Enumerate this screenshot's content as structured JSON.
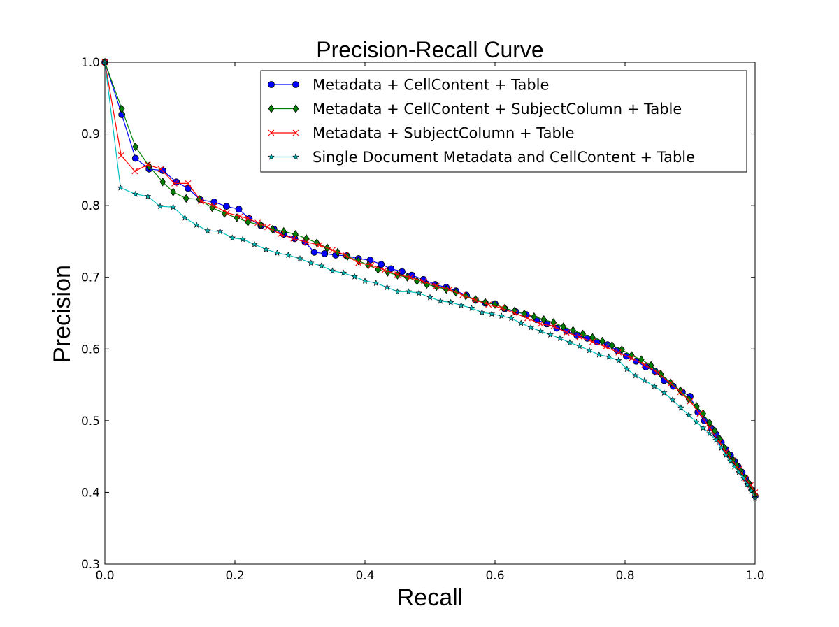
{
  "chart_data": {
    "type": "line",
    "title": "Precision-Recall Curve",
    "xlabel": "Recall",
    "ylabel": "Precision",
    "xlim": [
      0.0,
      1.0
    ],
    "ylim": [
      0.3,
      1.0
    ],
    "xticks": [
      0.0,
      0.2,
      0.4,
      0.6,
      0.8,
      1.0
    ],
    "xtick_labels": [
      "0.0",
      "0.2",
      "0.4",
      "0.6",
      "0.8",
      "1.0"
    ],
    "yticks": [
      0.3,
      0.4,
      0.5,
      0.6,
      0.7,
      0.8,
      0.9,
      1.0
    ],
    "ytick_labels": [
      "0.3",
      "0.4",
      "0.5",
      "0.6",
      "0.7",
      "0.8",
      "0.9",
      "1.0"
    ],
    "grid": false,
    "legend_position": "top-right",
    "series": [
      {
        "name": "Metadata + CellContent + Table",
        "color": "#0000ff",
        "marker": "circle",
        "x": [
          0.0,
          0.026,
          0.047,
          0.068,
          0.089,
          0.11,
          0.128,
          0.147,
          0.168,
          0.187,
          0.206,
          0.222,
          0.24,
          0.26,
          0.275,
          0.292,
          0.308,
          0.322,
          0.338,
          0.355,
          0.372,
          0.39,
          0.408,
          0.425,
          0.44,
          0.457,
          0.472,
          0.49,
          0.508,
          0.525,
          0.54,
          0.556,
          0.57,
          0.585,
          0.6,
          0.615,
          0.632,
          0.648,
          0.664,
          0.68,
          0.695,
          0.71,
          0.726,
          0.742,
          0.757,
          0.773,
          0.788,
          0.802,
          0.817,
          0.832,
          0.846,
          0.86,
          0.874,
          0.888,
          0.9,
          0.912,
          0.922,
          0.932,
          0.94,
          0.948,
          0.955,
          0.962,
          0.968,
          0.974,
          0.98,
          0.985,
          0.99,
          0.995,
          1.0
        ],
        "y": [
          1.0,
          0.927,
          0.866,
          0.851,
          0.849,
          0.833,
          0.824,
          0.808,
          0.805,
          0.799,
          0.795,
          0.782,
          0.772,
          0.767,
          0.76,
          0.754,
          0.749,
          0.735,
          0.733,
          0.731,
          0.73,
          0.726,
          0.724,
          0.718,
          0.712,
          0.708,
          0.703,
          0.697,
          0.69,
          0.686,
          0.681,
          0.675,
          0.668,
          0.664,
          0.663,
          0.656,
          0.652,
          0.648,
          0.641,
          0.635,
          0.629,
          0.625,
          0.619,
          0.615,
          0.61,
          0.606,
          0.598,
          0.59,
          0.583,
          0.575,
          0.569,
          0.556,
          0.548,
          0.54,
          0.534,
          0.512,
          0.5,
          0.49,
          0.481,
          0.47,
          0.46,
          0.452,
          0.444,
          0.436,
          0.428,
          0.42,
          0.412,
          0.404,
          0.395
        ]
      },
      {
        "name": "Metadata + CellContent + SubjectColumn + Table",
        "color": "#008000",
        "marker": "diamond",
        "x": [
          0.0,
          0.026,
          0.047,
          0.068,
          0.089,
          0.105,
          0.125,
          0.145,
          0.165,
          0.184,
          0.203,
          0.22,
          0.24,
          0.258,
          0.275,
          0.293,
          0.31,
          0.326,
          0.342,
          0.358,
          0.373,
          0.39,
          0.405,
          0.42,
          0.435,
          0.45,
          0.465,
          0.48,
          0.495,
          0.51,
          0.525,
          0.54,
          0.555,
          0.57,
          0.585,
          0.6,
          0.615,
          0.63,
          0.645,
          0.66,
          0.675,
          0.69,
          0.705,
          0.72,
          0.735,
          0.75,
          0.765,
          0.78,
          0.795,
          0.81,
          0.825,
          0.84,
          0.855,
          0.87,
          0.885,
          0.898,
          0.91,
          0.92,
          0.93,
          0.938,
          0.946,
          0.953,
          0.96,
          0.966,
          0.972,
          0.978,
          0.984,
          0.99,
          0.995,
          1.0
        ],
        "y": [
          1.0,
          0.935,
          0.882,
          0.855,
          0.833,
          0.819,
          0.81,
          0.809,
          0.797,
          0.789,
          0.783,
          0.777,
          0.773,
          0.767,
          0.764,
          0.76,
          0.754,
          0.748,
          0.741,
          0.735,
          0.729,
          0.723,
          0.717,
          0.711,
          0.707,
          0.703,
          0.7,
          0.695,
          0.69,
          0.687,
          0.683,
          0.679,
          0.674,
          0.669,
          0.665,
          0.662,
          0.657,
          0.653,
          0.649,
          0.645,
          0.641,
          0.637,
          0.631,
          0.626,
          0.621,
          0.616,
          0.611,
          0.605,
          0.599,
          0.591,
          0.585,
          0.577,
          0.565,
          0.553,
          0.542,
          0.53,
          0.52,
          0.51,
          0.497,
          0.486,
          0.474,
          0.462,
          0.453,
          0.445,
          0.437,
          0.429,
          0.421,
          0.413,
          0.404,
          0.396
        ]
      },
      {
        "name": "Metadata + SubjectColumn + Table",
        "color": "#ff0000",
        "marker": "x",
        "x": [
          0.0,
          0.025,
          0.046,
          0.066,
          0.086,
          0.107,
          0.128,
          0.148,
          0.168,
          0.188,
          0.208,
          0.22,
          0.235,
          0.25,
          0.27,
          0.29,
          0.31,
          0.33,
          0.35,
          0.37,
          0.39,
          0.41,
          0.43,
          0.45,
          0.47,
          0.49,
          0.51,
          0.53,
          0.55,
          0.57,
          0.59,
          0.61,
          0.63,
          0.65,
          0.67,
          0.69,
          0.71,
          0.73,
          0.75,
          0.77,
          0.79,
          0.81,
          0.83,
          0.85,
          0.87,
          0.885,
          0.9,
          0.915,
          0.93,
          0.945,
          0.955,
          0.965,
          0.975,
          0.985,
          0.993,
          1.0
        ],
        "y": [
          1.0,
          0.87,
          0.848,
          0.857,
          0.851,
          0.831,
          0.831,
          0.806,
          0.8,
          0.79,
          0.785,
          0.782,
          0.776,
          0.77,
          0.76,
          0.754,
          0.749,
          0.745,
          0.738,
          0.731,
          0.72,
          0.717,
          0.71,
          0.704,
          0.7,
          0.694,
          0.688,
          0.683,
          0.675,
          0.668,
          0.662,
          0.657,
          0.65,
          0.643,
          0.635,
          0.632,
          0.623,
          0.617,
          0.61,
          0.603,
          0.595,
          0.587,
          0.578,
          0.567,
          0.552,
          0.54,
          0.527,
          0.51,
          0.49,
          0.47,
          0.456,
          0.444,
          0.432,
          0.419,
          0.41,
          0.4
        ]
      },
      {
        "name": "Single Document Metadata and CellContent + Table",
        "color": "#00bfbf",
        "marker": "star",
        "x": [
          0.0,
          0.024,
          0.047,
          0.066,
          0.085,
          0.105,
          0.123,
          0.141,
          0.158,
          0.177,
          0.196,
          0.212,
          0.23,
          0.248,
          0.265,
          0.282,
          0.3,
          0.317,
          0.333,
          0.35,
          0.367,
          0.384,
          0.4,
          0.417,
          0.434,
          0.45,
          0.467,
          0.483,
          0.5,
          0.516,
          0.532,
          0.548,
          0.564,
          0.58,
          0.595,
          0.61,
          0.625,
          0.64,
          0.655,
          0.67,
          0.685,
          0.7,
          0.715,
          0.73,
          0.745,
          0.76,
          0.775,
          0.79,
          0.803,
          0.816,
          0.83,
          0.845,
          0.86,
          0.873,
          0.886,
          0.898,
          0.91,
          0.92,
          0.93,
          0.94,
          0.948,
          0.955,
          0.962,
          0.968,
          0.975,
          0.982,
          0.988,
          0.994,
          1.0
        ],
        "y": [
          1.0,
          0.825,
          0.816,
          0.813,
          0.799,
          0.798,
          0.783,
          0.773,
          0.765,
          0.764,
          0.755,
          0.753,
          0.746,
          0.739,
          0.734,
          0.731,
          0.726,
          0.72,
          0.716,
          0.709,
          0.706,
          0.701,
          0.695,
          0.692,
          0.686,
          0.68,
          0.68,
          0.678,
          0.672,
          0.667,
          0.665,
          0.661,
          0.657,
          0.651,
          0.649,
          0.646,
          0.643,
          0.636,
          0.63,
          0.625,
          0.62,
          0.615,
          0.609,
          0.604,
          0.598,
          0.592,
          0.589,
          0.584,
          0.572,
          0.563,
          0.556,
          0.548,
          0.539,
          0.529,
          0.518,
          0.508,
          0.498,
          0.49,
          0.482,
          0.473,
          0.462,
          0.452,
          0.444,
          0.436,
          0.428,
          0.42,
          0.411,
          0.402,
          0.392
        ]
      }
    ]
  }
}
